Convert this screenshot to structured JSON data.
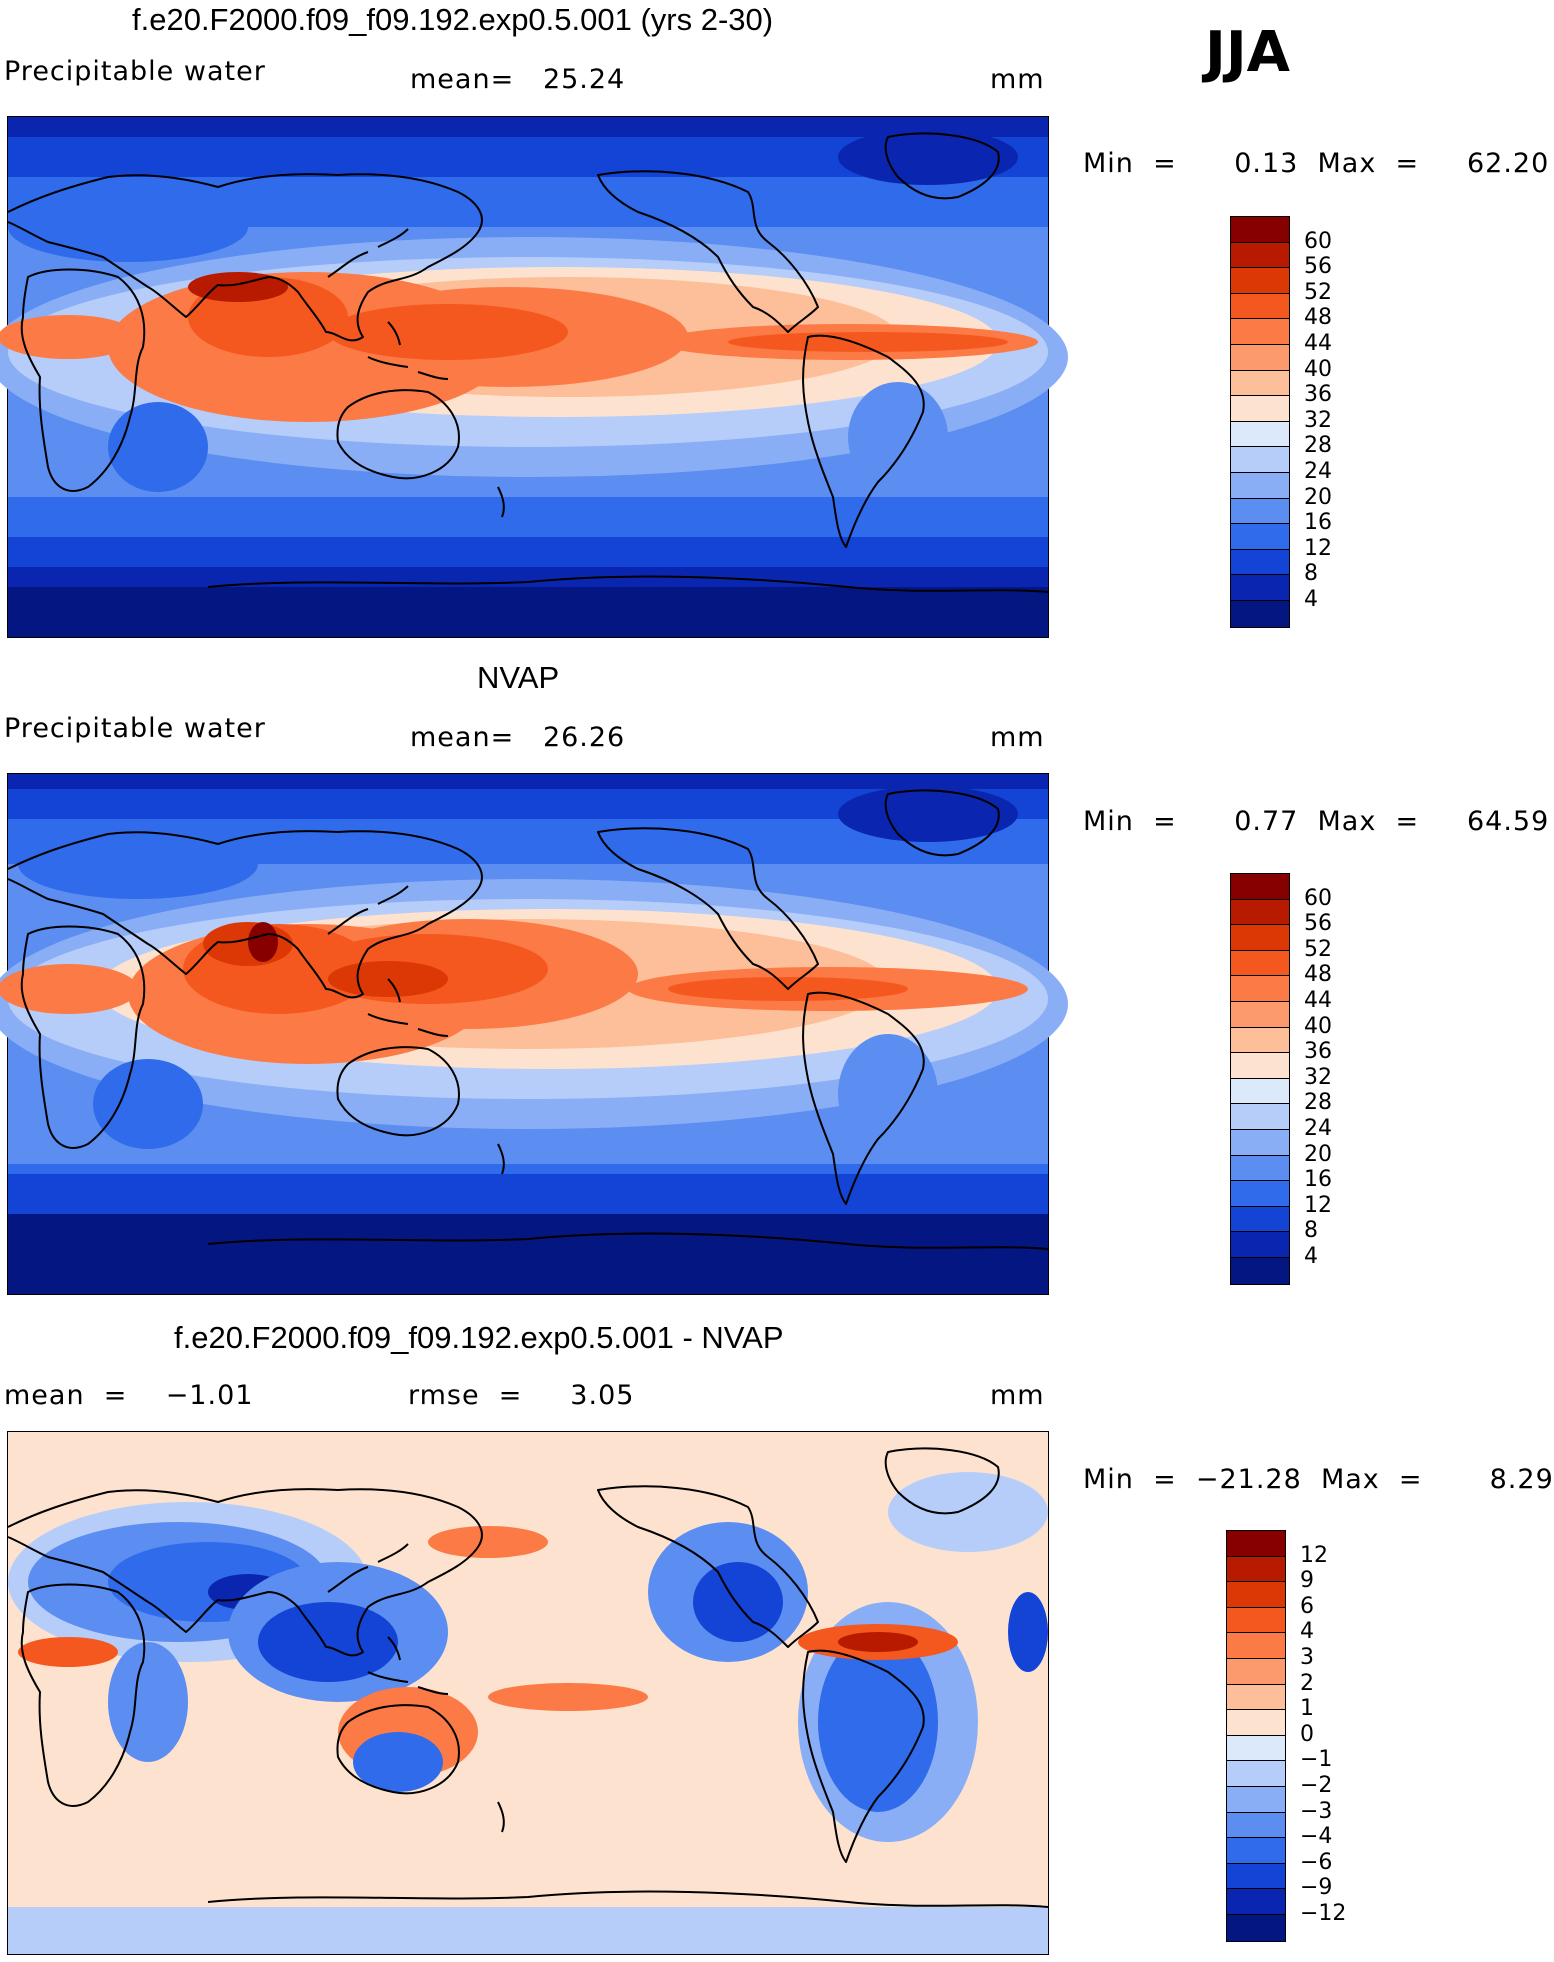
{
  "season": "JJA",
  "panels": [
    {
      "title": "f.e20.F2000.f09_f09.192.exp0.5.001 (yrs 2-30)",
      "field": "Precipitable water",
      "stat1": "mean=   25.24",
      "stat2": "",
      "units": "mm",
      "minmax": "Min  =      0.13  Max  =     62.20",
      "type": "abs"
    },
    {
      "title": "NVAP",
      "field": "Precipitable water",
      "stat1": "mean=   26.26",
      "stat2": "",
      "units": "mm",
      "minmax": "Min  =      0.77  Max  =     64.59",
      "type": "abs"
    },
    {
      "title": "f.e20.F2000.f09_f09.192.exp0.5.001 - NVAP",
      "field": "mean  =    −1.01",
      "stat1": "",
      "stat2": "rmse  =     3.05",
      "units": "mm",
      "minmax": "Min  =  −21.28  Max  =       8.29",
      "type": "diff"
    }
  ],
  "colorbars": {
    "abs": {
      "labels": [
        "60",
        "56",
        "52",
        "48",
        "44",
        "40",
        "36",
        "32",
        "28",
        "24",
        "20",
        "16",
        "12",
        "8",
        "4"
      ],
      "colors": [
        "#870000",
        "#b81a00",
        "#dc3806",
        "#f5581e",
        "#fb7a45",
        "#fc9a6e",
        "#fdbe9a",
        "#fde3cf",
        "#dbe9fb",
        "#b6cdfa",
        "#8aaef6",
        "#5b8ef0",
        "#2f6bea",
        "#1444d6",
        "#0a26b0",
        "#041682"
      ]
    },
    "diff": {
      "labels": [
        "12",
        "9",
        "6",
        "4",
        "3",
        "2",
        "1",
        "0",
        "−1",
        "−2",
        "−3",
        "−4",
        "−6",
        "−9",
        "−12"
      ],
      "colors": [
        "#870000",
        "#b81a00",
        "#dc3806",
        "#f5581e",
        "#fb7a45",
        "#fc9a6e",
        "#fdbe9a",
        "#fde3cf",
        "#dbe9fb",
        "#b6cdfa",
        "#8aaef6",
        "#5b8ef0",
        "#2f6bea",
        "#1444d6",
        "#0a26b0",
        "#041682"
      ]
    }
  }
}
